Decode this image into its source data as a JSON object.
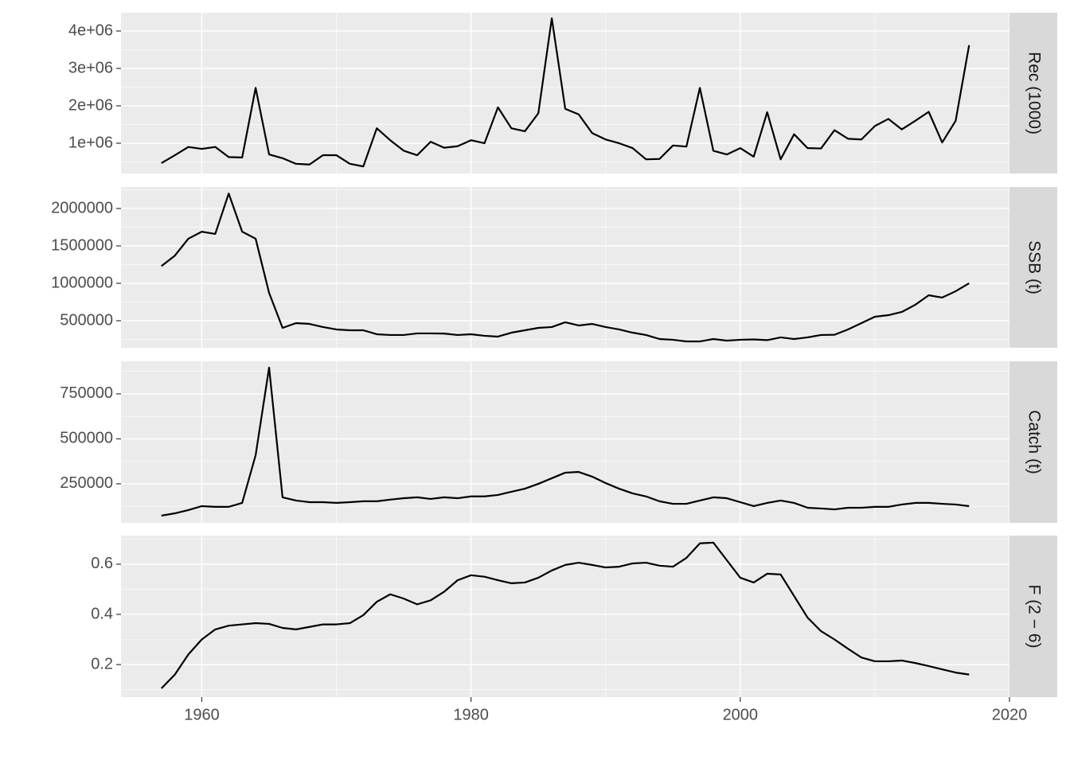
{
  "chart_data": [
    {
      "type": "line",
      "strip": "Rec (1000)",
      "color": "#000000",
      "grid": true,
      "x": [
        1957,
        1958,
        1959,
        1960,
        1961,
        1962,
        1963,
        1964,
        1965,
        1966,
        1967,
        1968,
        1969,
        1970,
        1971,
        1972,
        1973,
        1974,
        1975,
        1976,
        1977,
        1978,
        1979,
        1980,
        1981,
        1982,
        1983,
        1984,
        1985,
        1986,
        1987,
        1988,
        1989,
        1990,
        1991,
        1992,
        1993,
        1994,
        1995,
        1996,
        1997,
        1998,
        1999,
        2000,
        2001,
        2002,
        2003,
        2004,
        2005,
        2006,
        2007,
        2008,
        2009,
        2010,
        2011,
        2012,
        2013,
        2014,
        2015,
        2016,
        2017
      ],
      "values": [
        470000,
        680000,
        900000,
        850000,
        900000,
        630000,
        620000,
        2480000,
        700000,
        600000,
        450000,
        430000,
        680000,
        680000,
        450000,
        380000,
        1400000,
        1080000,
        800000,
        680000,
        1040000,
        880000,
        920000,
        1080000,
        1000000,
        1960000,
        1400000,
        1320000,
        1800000,
        4340000,
        1920000,
        1770000,
        1270000,
        1100000,
        1000000,
        870000,
        570000,
        580000,
        940000,
        910000,
        2480000,
        800000,
        700000,
        870000,
        640000,
        1830000,
        570000,
        1240000,
        870000,
        860000,
        1350000,
        1120000,
        1100000,
        1460000,
        1650000,
        1370000,
        1600000,
        1840000,
        1020000,
        1600000,
        3620000
      ],
      "xlim": [
        1954,
        2020
      ],
      "xticks": [
        1960,
        1980,
        2000,
        2020
      ],
      "ylim": [
        191000,
        4489000
      ],
      "yticks": [
        {
          "value": 1000000,
          "label": "1e+06"
        },
        {
          "value": 2000000,
          "label": "2e+06"
        },
        {
          "value": 3000000,
          "label": "3e+06"
        },
        {
          "value": 4000000,
          "label": "4e+06"
        }
      ]
    },
    {
      "type": "line",
      "strip": "SSB (t)",
      "color": "#000000",
      "grid": true,
      "x": [
        1957,
        1958,
        1959,
        1960,
        1961,
        1962,
        1963,
        1964,
        1965,
        1966,
        1967,
        1968,
        1969,
        1970,
        1971,
        1972,
        1973,
        1974,
        1975,
        1976,
        1977,
        1978,
        1979,
        1980,
        1981,
        1982,
        1983,
        1984,
        1985,
        1986,
        1987,
        1988,
        1989,
        1990,
        1991,
        1992,
        1993,
        1994,
        1995,
        1996,
        1997,
        1998,
        1999,
        2000,
        2001,
        2002,
        2003,
        2004,
        2005,
        2006,
        2007,
        2008,
        2009,
        2010,
        2011,
        2012,
        2013,
        2014,
        2015,
        2016,
        2017
      ],
      "values": [
        1230000,
        1370000,
        1596000,
        1690000,
        1660000,
        2200000,
        1690000,
        1596000,
        872000,
        404000,
        468000,
        457000,
        415000,
        383000,
        372000,
        372000,
        319000,
        309000,
        309000,
        330000,
        330000,
        328000,
        309000,
        319000,
        298000,
        287000,
        340000,
        372000,
        404000,
        415000,
        479000,
        436000,
        457000,
        415000,
        383000,
        340000,
        309000,
        255000,
        245000,
        223000,
        223000,
        255000,
        234000,
        245000,
        250000,
        240000,
        277000,
        255000,
        277000,
        309000,
        312000,
        383000,
        468000,
        553000,
        574000,
        617000,
        713000,
        840000,
        809000,
        894000,
        1000000
      ],
      "xlim": [
        1954,
        2020
      ],
      "xticks": [
        1960,
        1980,
        2000,
        2020
      ],
      "ylim": [
        138000,
        2287000
      ],
      "yticks": [
        500000,
        1000000,
        1500000,
        2000000
      ]
    },
    {
      "type": "line",
      "strip": "Catch (t)",
      "color": "#000000",
      "grid": true,
      "x": [
        1957,
        1958,
        1959,
        1960,
        1961,
        1962,
        1963,
        1964,
        1965,
        1966,
        1967,
        1968,
        1969,
        1970,
        1971,
        1972,
        1973,
        1974,
        1975,
        1976,
        1977,
        1978,
        1979,
        1980,
        1981,
        1982,
        1983,
        1984,
        1985,
        1986,
        1987,
        1988,
        1989,
        1990,
        1991,
        1992,
        1993,
        1994,
        1995,
        1996,
        1997,
        1998,
        1999,
        2000,
        2001,
        2002,
        2003,
        2004,
        2005,
        2006,
        2007,
        2008,
        2009,
        2010,
        2011,
        2012,
        2013,
        2014,
        2015,
        2016,
        2017
      ],
      "values": [
        73000,
        86000,
        104000,
        126000,
        122000,
        122000,
        144000,
        409000,
        896000,
        175000,
        157000,
        148000,
        148000,
        144000,
        148000,
        153000,
        153000,
        162000,
        170000,
        175000,
        166000,
        175000,
        170000,
        180000,
        180000,
        188000,
        206000,
        223000,
        250000,
        281000,
        312000,
        316000,
        290000,
        254000,
        223000,
        197000,
        180000,
        153000,
        139000,
        139000,
        157000,
        175000,
        170000,
        148000,
        126000,
        144000,
        157000,
        144000,
        117000,
        113000,
        108000,
        117000,
        117000,
        122000,
        122000,
        135000,
        144000,
        144000,
        139000,
        135000,
        126000
      ],
      "xlim": [
        1954,
        2020
      ],
      "xticks": [
        1960,
        1980,
        2000,
        2020
      ],
      "ylim": [
        33000,
        931000
      ],
      "yticks": [
        250000,
        500000,
        750000
      ]
    },
    {
      "type": "line",
      "strip": "F (2 − 6)",
      "color": "#000000",
      "grid": true,
      "x": [
        1957,
        1958,
        1959,
        1960,
        1961,
        1962,
        1963,
        1964,
        1965,
        1966,
        1967,
        1968,
        1969,
        1970,
        1971,
        1972,
        1973,
        1974,
        1975,
        1976,
        1977,
        1978,
        1979,
        1980,
        1981,
        1982,
        1983,
        1984,
        1985,
        1986,
        1987,
        1988,
        1989,
        1990,
        1991,
        1992,
        1993,
        1994,
        1995,
        1996,
        1997,
        1998,
        1999,
        2000,
        2001,
        2002,
        2003,
        2004,
        2005,
        2006,
        2007,
        2008,
        2009,
        2010,
        2011,
        2012,
        2013,
        2014,
        2015,
        2016,
        2017
      ],
      "values": [
        0.105,
        0.16,
        0.24,
        0.3,
        0.34,
        0.355,
        0.36,
        0.365,
        0.362,
        0.346,
        0.34,
        0.35,
        0.36,
        0.36,
        0.365,
        0.397,
        0.45,
        0.48,
        0.463,
        0.44,
        0.456,
        0.49,
        0.536,
        0.556,
        0.55,
        0.536,
        0.524,
        0.527,
        0.546,
        0.575,
        0.597,
        0.606,
        0.597,
        0.587,
        0.59,
        0.603,
        0.606,
        0.594,
        0.59,
        0.625,
        0.683,
        0.686,
        0.616,
        0.546,
        0.527,
        0.562,
        0.559,
        0.473,
        0.387,
        0.333,
        0.3,
        0.263,
        0.228,
        0.213,
        0.213,
        0.216,
        0.206,
        0.194,
        0.181,
        0.168,
        0.16
      ],
      "xlim": [
        1954,
        2020
      ],
      "xticks": [
        1960,
        1980,
        2000,
        2020
      ],
      "ylim": [
        0.07,
        0.714
      ],
      "yticks": [
        0.2,
        0.4,
        0.6
      ]
    }
  ]
}
